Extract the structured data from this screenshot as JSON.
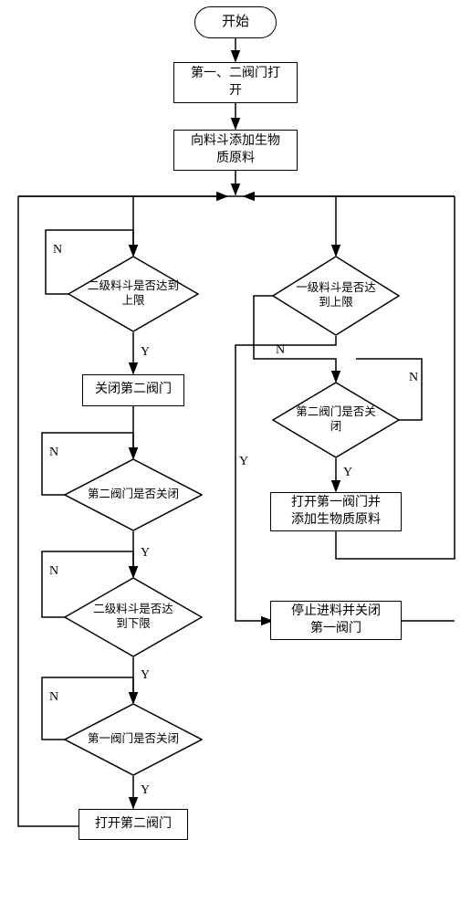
{
  "type": "flowchart",
  "background_color": "#ffffff",
  "stroke_color": "#000000",
  "stroke_width": 1.5,
  "font_family": "SimSun",
  "font_size_node": 14,
  "font_size_start": 15,
  "font_size_label": 14,
  "arrow_head": {
    "length": 9,
    "width": 6
  },
  "labels": {
    "yes": "Y",
    "no": "N"
  },
  "nodes": {
    "start": {
      "text": "开始"
    },
    "open_valves": {
      "text": "第一、二阀门打\n开"
    },
    "add_material": {
      "text": "向料斗添加生物\n质原料"
    },
    "d_l2_upper": {
      "text": "二级料斗是否达到\n上限"
    },
    "close_v2": {
      "text": "关闭第二阀门"
    },
    "d_v2_closed_left": {
      "text": "第二阀门是否关闭"
    },
    "d_l2_lower": {
      "text": "二级料斗是否达\n到下限"
    },
    "d_v1_closed": {
      "text": "第一阀门是否关闭"
    },
    "open_v2": {
      "text": "打开第二阀门"
    },
    "d_l1_upper": {
      "text": "一级料斗是否达\n到上限"
    },
    "d_v2_closed_right": {
      "text": "第二阀门是否关\n闭"
    },
    "open_v1_add": {
      "text": "打开第一阀门并\n添加生物质原料"
    },
    "stop_close_v1": {
      "text": "停止进料并关闭\n第一阀门"
    }
  }
}
